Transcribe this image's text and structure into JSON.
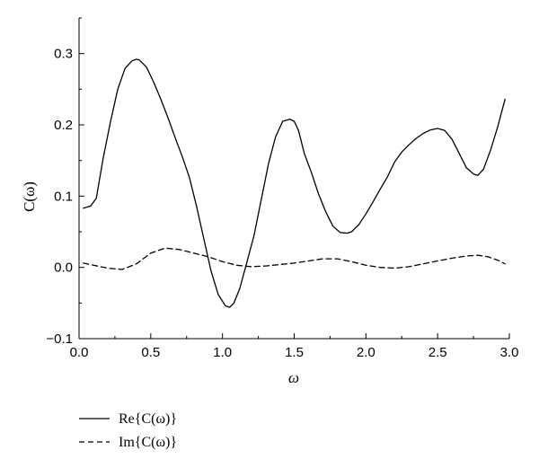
{
  "chart_data": {
    "type": "line",
    "xlabel": "ω",
    "ylabel": "C(ω)",
    "xlim": [
      0.0,
      3.0
    ],
    "ylim": [
      -0.1,
      0.35
    ],
    "xticks": [
      "0.0",
      "0.5",
      "1.0",
      "1.5",
      "2.0",
      "2.5",
      "3.0"
    ],
    "xtick_values": [
      0.0,
      0.5,
      1.0,
      1.5,
      2.0,
      2.5,
      3.0
    ],
    "yticks": [
      "−0.1",
      "0.0",
      "0.1",
      "0.2",
      "0.3"
    ],
    "ytick_values": [
      -0.1,
      0.0,
      0.1,
      0.2,
      0.3
    ],
    "grid": false,
    "legend_position": "bottom-left",
    "series": [
      {
        "name": "Re{C(ω)}",
        "style": "solid",
        "color": "#000000",
        "x": [
          0.03,
          0.08,
          0.12,
          0.17,
          0.22,
          0.27,
          0.32,
          0.37,
          0.4,
          0.42,
          0.47,
          0.52,
          0.57,
          0.62,
          0.67,
          0.72,
          0.77,
          0.82,
          0.87,
          0.92,
          0.97,
          1.02,
          1.05,
          1.08,
          1.12,
          1.17,
          1.22,
          1.27,
          1.32,
          1.37,
          1.42,
          1.47,
          1.5,
          1.53,
          1.57,
          1.62,
          1.67,
          1.72,
          1.77,
          1.82,
          1.87,
          1.9,
          1.95,
          2.0,
          2.05,
          2.1,
          2.15,
          2.2,
          2.25,
          2.3,
          2.35,
          2.4,
          2.45,
          2.5,
          2.55,
          2.6,
          2.65,
          2.7,
          2.75,
          2.78,
          2.82,
          2.87,
          2.92,
          2.97
        ],
        "y": [
          0.083,
          0.086,
          0.097,
          0.155,
          0.205,
          0.25,
          0.279,
          0.29,
          0.292,
          0.291,
          0.281,
          0.26,
          0.236,
          0.21,
          0.182,
          0.155,
          0.126,
          0.085,
          0.04,
          -0.005,
          -0.038,
          -0.054,
          -0.056,
          -0.05,
          -0.03,
          0.007,
          0.045,
          0.095,
          0.145,
          0.183,
          0.205,
          0.208,
          0.205,
          0.192,
          0.16,
          0.133,
          0.103,
          0.078,
          0.058,
          0.049,
          0.048,
          0.05,
          0.06,
          0.075,
          0.092,
          0.11,
          0.127,
          0.148,
          0.162,
          0.172,
          0.181,
          0.188,
          0.193,
          0.195,
          0.192,
          0.18,
          0.16,
          0.14,
          0.131,
          0.129,
          0.138,
          0.165,
          0.198,
          0.236
        ]
      },
      {
        "name": "Im{C(ω)}",
        "style": "dashed",
        "color": "#000000",
        "x": [
          0.03,
          0.1,
          0.2,
          0.3,
          0.4,
          0.5,
          0.6,
          0.7,
          0.8,
          0.9,
          1.0,
          1.1,
          1.2,
          1.3,
          1.4,
          1.5,
          1.6,
          1.7,
          1.8,
          1.9,
          2.0,
          2.1,
          2.2,
          2.3,
          2.4,
          2.5,
          2.6,
          2.7,
          2.78,
          2.85,
          2.92,
          2.97
        ],
        "y": [
          0.006,
          0.003,
          -0.001,
          -0.003,
          0.005,
          0.02,
          0.027,
          0.025,
          0.02,
          0.015,
          0.008,
          0.003,
          0.001,
          0.002,
          0.004,
          0.006,
          0.009,
          0.012,
          0.012,
          0.008,
          0.003,
          0.0,
          -0.001,
          0.001,
          0.005,
          0.009,
          0.013,
          0.016,
          0.017,
          0.015,
          0.01,
          0.005
        ]
      }
    ]
  }
}
